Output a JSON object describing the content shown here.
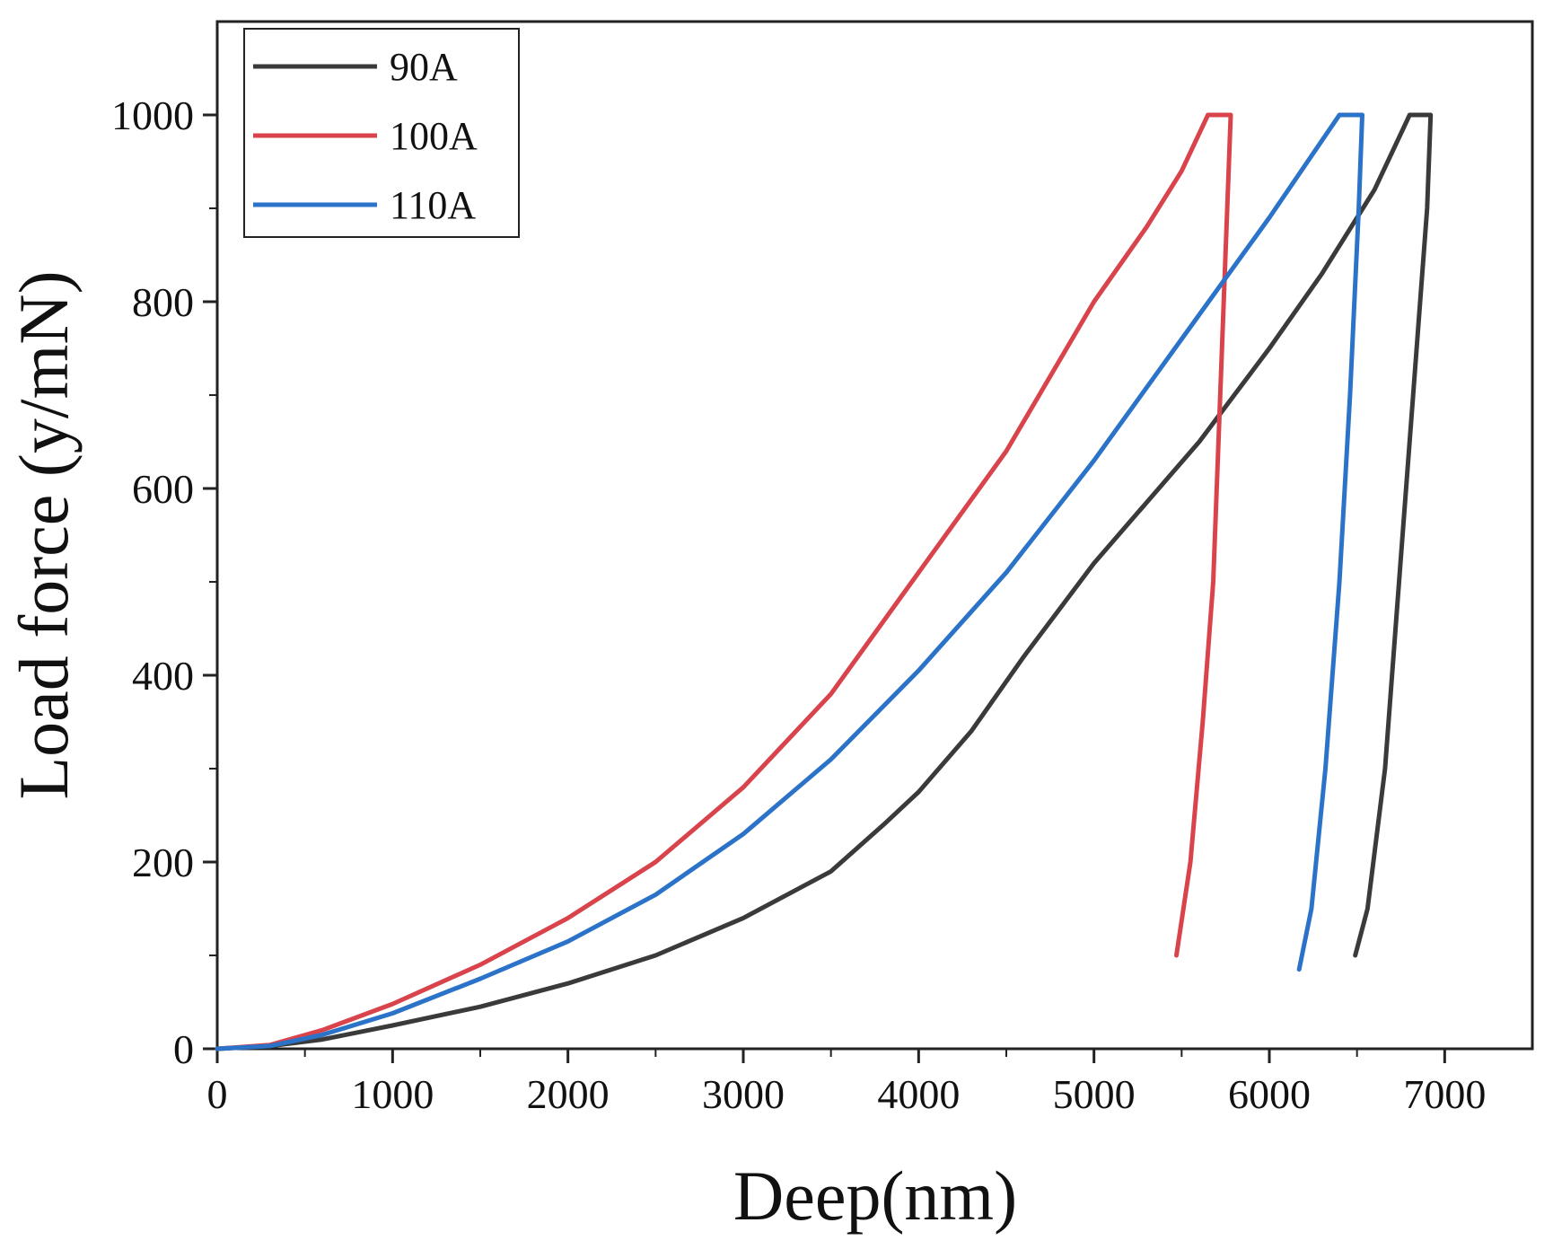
{
  "chart_data": {
    "type": "line",
    "title": "",
    "xlabel": "Deep(nm)",
    "ylabel": "Load force (y/mN)",
    "xlim": [
      0,
      7500
    ],
    "ylim": [
      0,
      1100
    ],
    "xticks": [
      0,
      1000,
      2000,
      3000,
      4000,
      5000,
      6000,
      7000
    ],
    "yticks": [
      0,
      200,
      400,
      600,
      800,
      1000
    ],
    "xtick_labels": [
      "0",
      "1000",
      "2000",
      "3000",
      "4000",
      "5000",
      "6000",
      "7000"
    ],
    "ytick_labels": [
      "0",
      "200",
      "400",
      "600",
      "800",
      "1000"
    ],
    "grid": false,
    "legend_position": "top-left",
    "series": [
      {
        "name": "90A",
        "color": "#3a3a3a",
        "points": [
          [
            0,
            0
          ],
          [
            300,
            3
          ],
          [
            600,
            10
          ],
          [
            1000,
            25
          ],
          [
            1500,
            45
          ],
          [
            2000,
            70
          ],
          [
            2500,
            100
          ],
          [
            3000,
            140
          ],
          [
            3500,
            190
          ],
          [
            3800,
            240
          ],
          [
            4000,
            275
          ],
          [
            4300,
            340
          ],
          [
            4600,
            420
          ],
          [
            4800,
            470
          ],
          [
            5000,
            520
          ],
          [
            5300,
            585
          ],
          [
            5600,
            650
          ],
          [
            5800,
            700
          ],
          [
            6000,
            750
          ],
          [
            6300,
            830
          ],
          [
            6600,
            920
          ],
          [
            6800,
            1000
          ],
          [
            6920,
            1000
          ],
          [
            6900,
            900
          ],
          [
            6820,
            700
          ],
          [
            6740,
            500
          ],
          [
            6660,
            300
          ],
          [
            6560,
            150
          ],
          [
            6490,
            100
          ]
        ]
      },
      {
        "name": "100A",
        "color": "#d9434b",
        "points": [
          [
            0,
            0
          ],
          [
            300,
            4
          ],
          [
            600,
            20
          ],
          [
            1000,
            48
          ],
          [
            1500,
            90
          ],
          [
            2000,
            140
          ],
          [
            2500,
            200
          ],
          [
            3000,
            280
          ],
          [
            3500,
            380
          ],
          [
            4000,
            510
          ],
          [
            4500,
            640
          ],
          [
            5000,
            800
          ],
          [
            5300,
            880
          ],
          [
            5500,
            940
          ],
          [
            5650,
            1000
          ],
          [
            5780,
            1000
          ],
          [
            5760,
            900
          ],
          [
            5720,
            700
          ],
          [
            5680,
            500
          ],
          [
            5620,
            350
          ],
          [
            5550,
            200
          ],
          [
            5470,
            100
          ]
        ]
      },
      {
        "name": "110A",
        "color": "#2b73c9",
        "points": [
          [
            0,
            0
          ],
          [
            300,
            3
          ],
          [
            600,
            15
          ],
          [
            1000,
            38
          ],
          [
            1500,
            75
          ],
          [
            2000,
            115
          ],
          [
            2500,
            165
          ],
          [
            3000,
            230
          ],
          [
            3500,
            310
          ],
          [
            4000,
            405
          ],
          [
            4500,
            510
          ],
          [
            5000,
            630
          ],
          [
            5500,
            760
          ],
          [
            6000,
            890
          ],
          [
            6400,
            1000
          ],
          [
            6530,
            1000
          ],
          [
            6510,
            900
          ],
          [
            6460,
            700
          ],
          [
            6400,
            500
          ],
          [
            6320,
            300
          ],
          [
            6240,
            150
          ],
          [
            6170,
            85
          ]
        ]
      }
    ]
  }
}
